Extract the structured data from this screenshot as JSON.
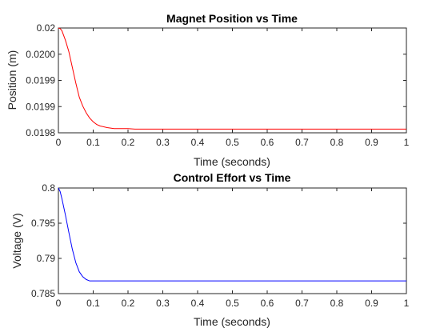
{
  "chart_data": [
    {
      "type": "line",
      "title": "Magnet Position vs Time",
      "xlabel": "Time (seconds)",
      "ylabel": "Position (m)",
      "xlim": [
        0,
        1
      ],
      "ylim": [
        0.0198,
        0.02
      ],
      "xticks": [
        0,
        0.1,
        0.2,
        0.3,
        0.4,
        0.5,
        0.6,
        0.7,
        0.8,
        0.9,
        1
      ],
      "xtick_labels": [
        "0",
        "0.1",
        "0.2",
        "0.3",
        "0.4",
        "0.5",
        "0.6",
        "0.7",
        "0.8",
        "0.9",
        "1"
      ],
      "yticks": [
        0.0198,
        0.01985,
        0.0199,
        0.01995,
        0.02
      ],
      "ytick_labels": [
        "0.0198",
        "0.0199",
        "0.0199",
        "0.0200",
        "0.02"
      ],
      "grid": false,
      "series": [
        {
          "color": "#ff0000",
          "x": [
            0,
            0.005,
            0.01,
            0.02,
            0.03,
            0.04,
            0.05,
            0.06,
            0.07,
            0.08,
            0.09,
            0.1,
            0.11,
            0.12,
            0.14,
            0.16,
            0.18,
            0.2,
            0.22,
            0.25,
            0.3,
            0.4,
            0.5,
            0.6,
            0.7,
            0.8,
            0.9,
            1.0
          ],
          "y": [
            0.02,
            0.019999,
            0.019995,
            0.019977,
            0.019955,
            0.019925,
            0.019895,
            0.019868,
            0.019851,
            0.019838,
            0.019828,
            0.019821,
            0.019816,
            0.019813,
            0.01981,
            0.019808,
            0.019808,
            0.019808,
            0.019807,
            0.019807,
            0.019807,
            0.019807,
            0.019807,
            0.019807,
            0.019807,
            0.019807,
            0.019807,
            0.019807
          ]
        }
      ]
    },
    {
      "type": "line",
      "title": "Control Effort vs Time",
      "xlabel": "Time (seconds)",
      "ylabel": "Voltage (V)",
      "xlim": [
        0,
        1
      ],
      "ylim": [
        0.785,
        0.8
      ],
      "xticks": [
        0,
        0.1,
        0.2,
        0.3,
        0.4,
        0.5,
        0.6,
        0.7,
        0.8,
        0.9,
        1
      ],
      "xtick_labels": [
        "0",
        "0.1",
        "0.2",
        "0.3",
        "0.4",
        "0.5",
        "0.6",
        "0.7",
        "0.8",
        "0.9",
        "1"
      ],
      "yticks": [
        0.785,
        0.79,
        0.795,
        0.8
      ],
      "ytick_labels": [
        "0.785",
        "0.79",
        "0.795",
        "0.8"
      ],
      "grid": false,
      "series": [
        {
          "color": "#0000ff",
          "x": [
            0,
            0.005,
            0.01,
            0.02,
            0.03,
            0.04,
            0.05,
            0.06,
            0.07,
            0.08,
            0.09,
            0.1,
            0.12,
            0.15,
            0.2,
            0.3,
            0.4,
            0.5,
            0.6,
            0.7,
            0.8,
            0.9,
            1.0
          ],
          "y": [
            0.8,
            0.7995,
            0.7985,
            0.7962,
            0.7937,
            0.7913,
            0.7894,
            0.7881,
            0.7874,
            0.787,
            0.7868,
            0.7868,
            0.7868,
            0.7868,
            0.7868,
            0.7868,
            0.7868,
            0.7868,
            0.7868,
            0.7868,
            0.7868,
            0.7868,
            0.7868
          ]
        }
      ]
    }
  ]
}
